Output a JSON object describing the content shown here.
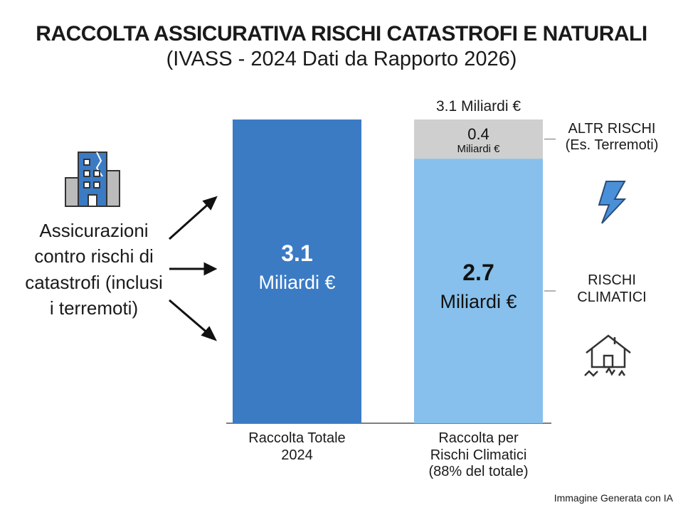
{
  "chart_data": {
    "type": "bar",
    "title": "RACCOLTA ASSICURATIVA RISCHI CATASTROFI E NATURALI",
    "subtitle": "(IVASS - 2024 Dati da Rapporto 2026)",
    "annotation": "Assicurazioni contro rischi di catastrofi (inclusi i terremoti)",
    "categories": [
      "Raccolta Totale 2024",
      "Raccolta per Rischi Climatici (88% del totale)"
    ],
    "unit": "Miliardi €",
    "total_label": "3.1 Miliardi €",
    "series": [
      {
        "color": "#3b7bc4",
        "values": [
          3.1,
          null
        ]
      },
      {
        "name": "RISCHI CLIMATICI",
        "color": "#87c0ec",
        "values": [
          null,
          2.7
        ]
      },
      {
        "name": "ALTR RISCHI (Es. Terremoti)",
        "color": "#cfcfcf",
        "values": [
          null,
          0.4
        ]
      }
    ],
    "footer": "Immagine Generata con IA"
  }
}
